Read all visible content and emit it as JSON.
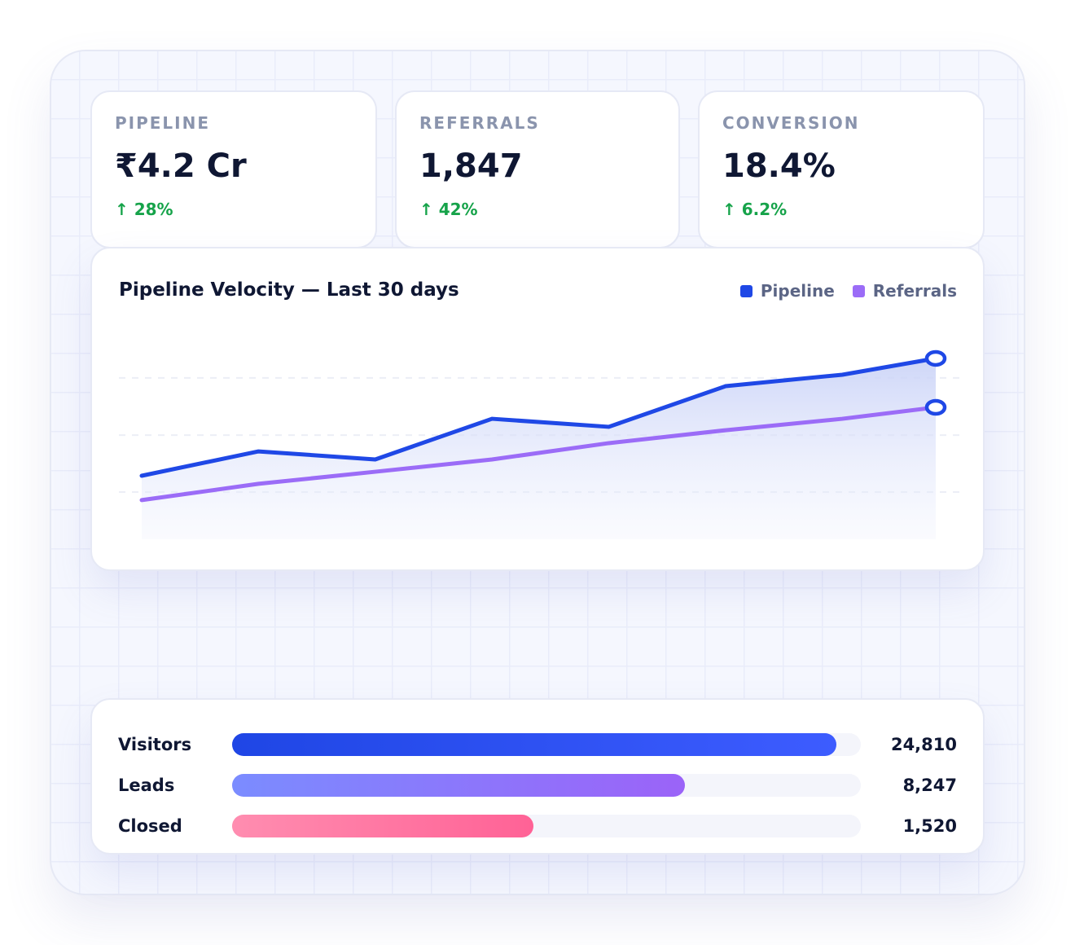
{
  "kpis": [
    {
      "label": "PIPELINE",
      "value": "₹4.2 Cr",
      "delta": "↑ 28%"
    },
    {
      "label": "REFERRALS",
      "value": "1,847",
      "delta": "↑ 42%"
    },
    {
      "label": "CONVERSION",
      "value": "18.4%",
      "delta": "↑ 6.2%"
    }
  ],
  "chart": {
    "title": "Pipeline Velocity — Last 30 days"
  },
  "chart_data": {
    "type": "line",
    "title": "Pipeline Velocity — Last 30 days",
    "x": [
      0,
      1,
      2,
      3,
      4,
      5,
      6,
      6.8
    ],
    "ylim": [
      0,
      100
    ],
    "grid": true,
    "legend": "top-right",
    "series": [
      {
        "name": "Pipeline",
        "color": "#1f48e6",
        "values": [
          30,
          41.5,
          37.7,
          56.9,
          53.1,
          72.3,
          77.7,
          85.4
        ],
        "area": true
      },
      {
        "name": "Referrals",
        "color": "#9b6cf7",
        "values": [
          18.5,
          26.2,
          31.9,
          37.7,
          45.4,
          51.5,
          56.9,
          62.3
        ]
      }
    ],
    "gridlines": [
      22.3,
      49.2,
      76.2
    ]
  },
  "funnel": [
    {
      "label": "Visitors",
      "value": "24,810",
      "fraction": 0.961,
      "colors": [
        "#1f46e5",
        "#3d5cff"
      ]
    },
    {
      "label": "Leads",
      "value": "8,247",
      "fraction": 0.72,
      "colors": [
        "#7b8cff",
        "#9b63f8"
      ]
    },
    {
      "label": "Closed",
      "value": "1,520",
      "fraction": 0.479,
      "colors": [
        "#ff8db0",
        "#ff6296"
      ]
    }
  ]
}
